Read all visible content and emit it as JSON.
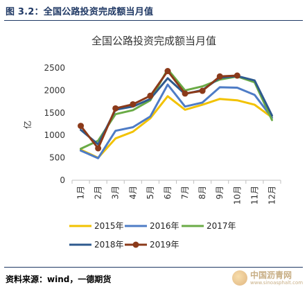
{
  "figure": {
    "title": "图 3.2：全国公路投资完成额当月值",
    "source": "资料来源：wind，一德期货"
  },
  "watermark": {
    "name": "中国沥青网",
    "url": "www.sinoasphalt.com"
  },
  "chart_data": {
    "type": "line",
    "title": "全国公路投资完成额当月值",
    "ylabel": "亿",
    "xlabel": "",
    "ylim": [
      0,
      2500
    ],
    "yticks": [
      0,
      500,
      1000,
      1500,
      2000,
      2500
    ],
    "categories": [
      "1月",
      "2月",
      "3月",
      "4月",
      "5月",
      "6月",
      "7月",
      "8月",
      "9月",
      "10月",
      "11月",
      "12月"
    ],
    "grid": false,
    "legend_position": "bottom",
    "series": [
      {
        "name": "2015年",
        "color": "#f2c200",
        "marker": false,
        "values": [
          680,
          500,
          930,
          1080,
          1380,
          1870,
          1570,
          1680,
          1810,
          1780,
          1680,
          1400
        ]
      },
      {
        "name": "2016年",
        "color": "#4e7cc6",
        "marker": false,
        "values": [
          660,
          490,
          1100,
          1180,
          1420,
          2130,
          1640,
          1730,
          2070,
          2060,
          1900,
          1390
        ]
      },
      {
        "name": "2017年",
        "color": "#6aab46",
        "marker": false,
        "values": [
          700,
          880,
          1470,
          1560,
          1780,
          2470,
          2000,
          2090,
          2240,
          2310,
          2180,
          1340
        ]
      },
      {
        "name": "2018年",
        "color": "#2e5a8e",
        "marker": false,
        "values": [
          1120,
          800,
          1570,
          1640,
          1810,
          2270,
          1920,
          2010,
          2280,
          2320,
          2220,
          1440
        ]
      },
      {
        "name": "2019年",
        "color": "#8b3a1a",
        "marker": true,
        "values": [
          1210,
          710,
          1600,
          1690,
          1880,
          2430,
          1930,
          1990,
          2310,
          2330,
          null,
          null
        ]
      }
    ]
  }
}
